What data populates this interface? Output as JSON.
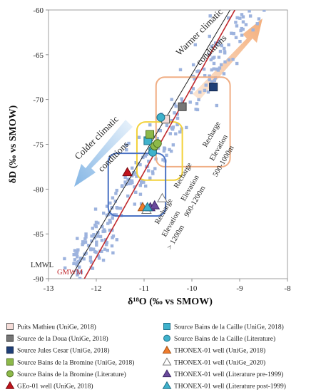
{
  "chart_data": {
    "type": "scatter",
    "xlabel": "δ¹⁸O (‰ vs SMOW)",
    "ylabel": "δD (‰ vs SMOW)",
    "xlim": [
      -13,
      -8
    ],
    "ylim": [
      -90,
      -60
    ],
    "xticks": [
      "-13",
      "-12",
      "-11",
      "-10",
      "-9",
      "-8"
    ],
    "yticks": [
      "-60",
      "-65",
      "-70",
      "-75",
      "-80",
      "-85",
      "-90"
    ],
    "grid": false,
    "legend_placement": "bottom",
    "lines": [
      {
        "name": "LMWL",
        "color": "#222222",
        "x": [
          -12.55,
          -9.2
        ],
        "y": [
          -90,
          -60
        ]
      },
      {
        "name": "GMWM",
        "color": "#c0282c",
        "x": [
          -12.25,
          -9.1
        ],
        "y": [
          -90,
          -60
        ]
      }
    ],
    "annotations": [
      {
        "text": "Warmer climatic",
        "x": -9.8,
        "y": -62.7
      },
      {
        "text": "conditions",
        "x": -9.55,
        "y": -64.7
      },
      {
        "text": "Colder climatic",
        "x": -11.95,
        "y": -74.5
      },
      {
        "text": "conditions",
        "x": -11.6,
        "y": -76.6
      },
      {
        "text": "Recharge",
        "x": -9.55,
        "y": -74.0
      },
      {
        "text": "Elevation",
        "x": -9.4,
        "y": -75.5
      },
      {
        "text": "500-1000m",
        "x": -9.3,
        "y": -77.0
      },
      {
        "text": "Recharge",
        "x": -10.15,
        "y": -78.6
      },
      {
        "text": "Elevation",
        "x": -10.0,
        "y": -80.0
      },
      {
        "text": "900-1200m",
        "x": -9.9,
        "y": -81.5
      },
      {
        "text": "Recharge",
        "x": -10.55,
        "y": -82.6
      },
      {
        "text": "Elevation",
        "x": -10.4,
        "y": -84.0
      },
      {
        "text": "> 1200m",
        "x": -10.3,
        "y": -85.5
      }
    ],
    "boxes": [
      {
        "name": "500-1000m",
        "color": "#f0ae84",
        "x": [
          -10.75,
          -9.2
        ],
        "y": [
          -77.5,
          -67.5
        ]
      },
      {
        "name": "900-1200m",
        "color": "#f3d23a",
        "x": [
          -11.15,
          -10.2
        ],
        "y": [
          -79.0,
          -72.5
        ]
      },
      {
        "name": "> 1200m",
        "color": "#4a72c4",
        "x": [
          -11.75,
          -10.55
        ],
        "y": [
          -83.0,
          -76.0
        ]
      }
    ],
    "series": [
      {
        "name": "Puits Mathieu (UniGe, 2018)",
        "marker": "square",
        "fill": "#f5dcd8",
        "stroke": "#555555",
        "x": [
          -10.55
        ],
        "y": [
          -72.2
        ]
      },
      {
        "name": "Source Bains de la Caille (UniGe, 2018)",
        "marker": "square",
        "fill": "#3fb2cc",
        "stroke": "#1f6f88",
        "x": [
          -10.92
        ],
        "y": [
          -74.6
        ]
      },
      {
        "name": "Source de la Doua (UniGe, 2018)",
        "marker": "square",
        "fill": "#767676",
        "stroke": "#3a3a3a",
        "x": [
          -10.2
        ],
        "y": [
          -70.8
        ]
      },
      {
        "name": "Source Bains de la Caille (Literature)",
        "marker": "circle",
        "fill": "#3fb2cc",
        "stroke": "#1f6f88",
        "x": [
          -10.65,
          -10.82,
          -10.82
        ],
        "y": [
          -72.0,
          -75.6,
          -75.9
        ]
      },
      {
        "name": "Source Jules Cesar (UniGe, 2018)",
        "marker": "square",
        "fill": "#1f3f77",
        "stroke": "#0f2244",
        "x": [
          -9.55
        ],
        "y": [
          -68.6
        ]
      },
      {
        "name": "THONEX-01 well (UniGe, 2018)",
        "marker": "triangle",
        "fill": "#f07c2c",
        "stroke": "#a24f12",
        "x": [
          -11.03
        ],
        "y": [
          -82.0
        ]
      },
      {
        "name": "Source Bains de la Bromine (UniGe, 2018)",
        "marker": "square",
        "fill": "#8db94a",
        "stroke": "#4d6e20",
        "x": [
          -10.88
        ],
        "y": [
          -73.9
        ]
      },
      {
        "name": "THONEX-01 well (UniGe_2020)",
        "marker": "triangle",
        "fill": "#ffffff",
        "stroke": "#7a7a7a",
        "x": [
          -10.95,
          -10.62
        ],
        "y": [
          -82.3,
          -81.0
        ]
      },
      {
        "name": "Source Bains de la Bromine (Literature)",
        "marker": "circle",
        "fill": "#8db94a",
        "stroke": "#4d6e20",
        "x": [
          -10.78,
          -10.72
        ],
        "y": [
          -75.2,
          -74.9
        ]
      },
      {
        "name": "THONEX-01 well (Literature pre-1999)",
        "marker": "triangle",
        "fill": "#6a4a9c",
        "stroke": "#3e2866",
        "x": [
          -10.87,
          -10.78
        ],
        "y": [
          -82.0,
          -81.8
        ]
      },
      {
        "name": "GEo-01 well (UniGe, 2018)",
        "marker": "triangle",
        "fill": "#c0141c",
        "stroke": "#7a0a10",
        "x": [
          -11.35
        ],
        "y": [
          -78.1
        ]
      },
      {
        "name": "THONEX-01 well (Literature post-1999)",
        "marker": "triangle",
        "fill": "#3fb2cc",
        "stroke": "#1f6f88",
        "x": [
          -10.93
        ],
        "y": [
          -82.0
        ]
      }
    ]
  }
}
